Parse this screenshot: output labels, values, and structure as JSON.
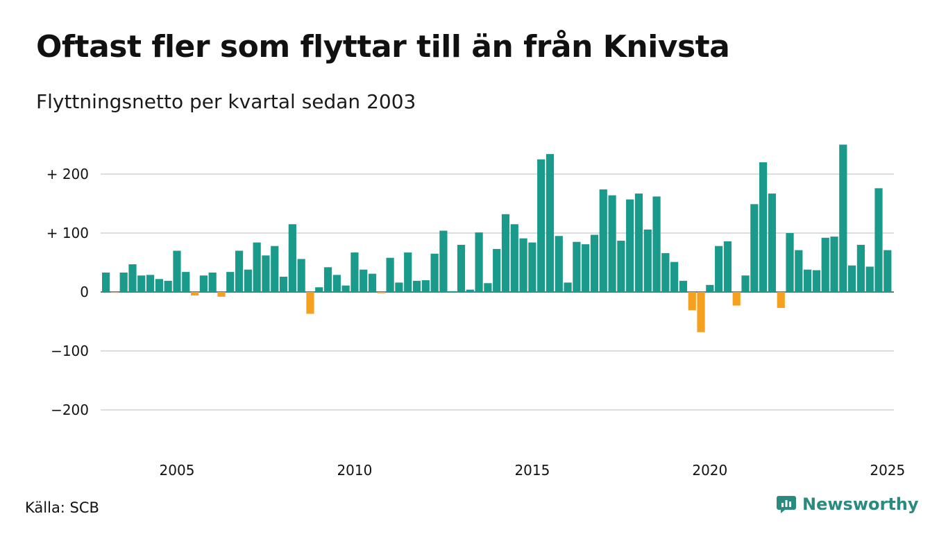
{
  "title": "Oftast fler som flyttar till än från Knivsta",
  "subtitle": "Flyttningsnetto per kvartal sedan 2003",
  "source": "Källa: SCB",
  "brand": {
    "name": "Newsworthy",
    "icon": "newsworthy-logo-icon"
  },
  "colors": {
    "positive": "#1a9a8a",
    "negative": "#f5a01f",
    "grid": "#dddddd",
    "brand": "#2a8a7e"
  },
  "chart_data": {
    "type": "bar",
    "title": "Oftast fler som flyttar till än från Knivsta",
    "subtitle": "Flyttningsnetto per kvartal sedan 2003",
    "start_year": 2003,
    "start_quarter": 1,
    "x_ticks": [
      "2005",
      "2010",
      "2015",
      "2020",
      "2025"
    ],
    "y_ticks": [
      {
        "value": 200,
        "label": "+ 200"
      },
      {
        "value": 100,
        "label": "+ 100"
      },
      {
        "value": 0,
        "label": "0"
      },
      {
        "value": -100,
        "label": "−100"
      },
      {
        "value": -200,
        "label": "−200"
      }
    ],
    "ylim": [
      -260,
      260
    ],
    "grid": true,
    "values": [
      33,
      -1,
      33,
      47,
      28,
      29,
      22,
      19,
      70,
      34,
      -6,
      28,
      33,
      -8,
      34,
      70,
      38,
      84,
      62,
      78,
      26,
      115,
      56,
      -37,
      8,
      42,
      29,
      11,
      67,
      38,
      31,
      -2,
      58,
      16,
      67,
      19,
      20,
      65,
      104,
      1,
      80,
      4,
      101,
      15,
      73,
      132,
      115,
      91,
      84,
      225,
      234,
      95,
      16,
      85,
      81,
      97,
      174,
      164,
      87,
      157,
      167,
      106,
      162,
      66,
      51,
      19,
      -31,
      -68,
      12,
      78,
      86,
      -23,
      28,
      149,
      220,
      167,
      -27,
      100,
      71,
      38,
      37,
      92,
      94,
      250,
      45,
      80,
      43,
      176,
      71
    ]
  }
}
